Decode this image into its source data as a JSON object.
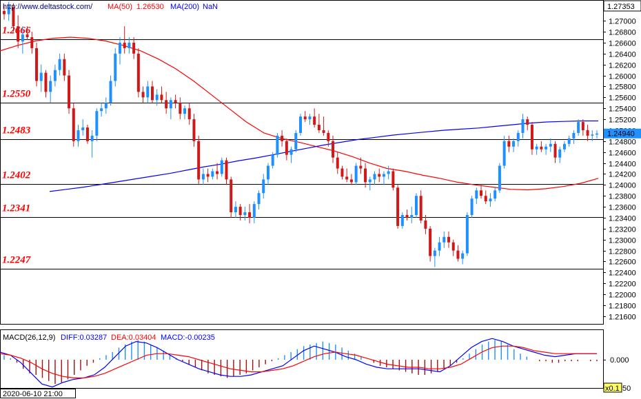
{
  "chart_data": [
    {
      "type": "candlestick",
      "source_label": "http://www.deltastock.com/",
      "indicators": [
        {
          "label": "MA(50)",
          "value": "1.26530",
          "color": "#ff0000"
        },
        {
          "label": "MA(200)",
          "value": "NaN",
          "color": "#0000ff"
        }
      ],
      "current_price": "1.24940",
      "top_label": "1.27353",
      "y_ticks": [
        "1.27000",
        "1.26800",
        "1.26600",
        "1.26400",
        "1.26200",
        "1.26000",
        "1.25800",
        "1.25600",
        "1.25400",
        "1.25200",
        "1.25000",
        "1.24800",
        "1.24600",
        "1.24400",
        "1.24200",
        "1.24000",
        "1.23800",
        "1.23600",
        "1.23400",
        "1.23200",
        "1.23000",
        "1.22800",
        "1.22600",
        "1.22400",
        "1.22200",
        "1.22000",
        "1.21800",
        "1.21600"
      ],
      "ylim": [
        1.2146,
        1.2738
      ],
      "levels": [
        {
          "label": "1.2666",
          "value": 1.2666
        },
        {
          "label": "1.2550",
          "value": 1.255
        },
        {
          "label": "1.2483",
          "value": 1.2483
        },
        {
          "label": "1.2402",
          "value": 1.2402
        },
        {
          "label": "1.2341",
          "value": 1.2341
        },
        {
          "label": "1.2247",
          "value": 1.2247
        }
      ],
      "ohlc": [
        [
          1.2718,
          1.2728,
          1.2702,
          1.2712
        ],
        [
          1.2712,
          1.2735,
          1.27,
          1.2725
        ],
        [
          1.2725,
          1.2732,
          1.268,
          1.269
        ],
        [
          1.269,
          1.271,
          1.265,
          1.2662
        ],
        [
          1.2662,
          1.269,
          1.264,
          1.2675
        ],
        [
          1.2675,
          1.269,
          1.2665,
          1.267
        ],
        [
          1.267,
          1.268,
          1.264,
          1.265
        ],
        [
          1.265,
          1.266,
          1.258,
          1.259
        ],
        [
          1.259,
          1.262,
          1.257,
          1.2605
        ],
        [
          1.2605,
          1.261,
          1.256,
          1.257
        ],
        [
          1.257,
          1.26,
          1.255,
          1.259
        ],
        [
          1.259,
          1.262,
          1.258,
          1.261
        ],
        [
          1.261,
          1.264,
          1.26,
          1.263
        ],
        [
          1.263,
          1.264,
          1.259,
          1.26
        ],
        [
          1.26,
          1.261,
          1.253,
          1.254
        ],
        [
          1.254,
          1.255,
          1.247,
          1.248
        ],
        [
          1.248,
          1.251,
          1.247,
          1.25
        ],
        [
          1.25,
          1.252,
          1.249,
          1.2505
        ],
        [
          1.2505,
          1.251,
          1.2475,
          1.248
        ],
        [
          1.248,
          1.25,
          1.245,
          1.249
        ],
        [
          1.249,
          1.254,
          1.248,
          1.2535
        ],
        [
          1.2535,
          1.255,
          1.2525,
          1.254
        ],
        [
          1.254,
          1.256,
          1.253,
          1.255
        ],
        [
          1.255,
          1.26,
          1.2545,
          1.259
        ],
        [
          1.259,
          1.265,
          1.258,
          1.264
        ],
        [
          1.264,
          1.267,
          1.262,
          1.266
        ],
        [
          1.266,
          1.269,
          1.264,
          1.265
        ],
        [
          1.265,
          1.267,
          1.264,
          1.266
        ],
        [
          1.266,
          1.267,
          1.263,
          1.264
        ],
        [
          1.264,
          1.265,
          1.256,
          1.257
        ],
        [
          1.257,
          1.258,
          1.255,
          1.256
        ],
        [
          1.256,
          1.259,
          1.255,
          1.258
        ],
        [
          1.258,
          1.259,
          1.255,
          1.2555
        ],
        [
          1.2555,
          1.2575,
          1.2545,
          1.2565
        ],
        [
          1.2565,
          1.258,
          1.255,
          1.2555
        ],
        [
          1.2555,
          1.257,
          1.253,
          1.254
        ],
        [
          1.254,
          1.256,
          1.252,
          1.2555
        ],
        [
          1.2555,
          1.2565,
          1.254,
          1.255
        ],
        [
          1.255,
          1.256,
          1.252,
          1.253
        ],
        [
          1.253,
          1.2545,
          1.252,
          1.254
        ],
        [
          1.254,
          1.255,
          1.251,
          1.252
        ],
        [
          1.252,
          1.253,
          1.247,
          1.248
        ],
        [
          1.248,
          1.249,
          1.24,
          1.241
        ],
        [
          1.241,
          1.243,
          1.24,
          1.242
        ],
        [
          1.242,
          1.243,
          1.2405,
          1.2415
        ],
        [
          1.2415,
          1.243,
          1.241,
          1.2425
        ],
        [
          1.2425,
          1.244,
          1.241,
          1.242
        ],
        [
          1.242,
          1.245,
          1.2415,
          1.2445
        ],
        [
          1.2445,
          1.245,
          1.24,
          1.241
        ],
        [
          1.241,
          1.2415,
          1.234,
          1.235
        ],
        [
          1.235,
          1.237,
          1.234,
          1.236
        ],
        [
          1.236,
          1.2365,
          1.2335,
          1.2345
        ],
        [
          1.2345,
          1.236,
          1.2335,
          1.235
        ],
        [
          1.235,
          1.2365,
          1.233,
          1.234
        ],
        [
          1.234,
          1.237,
          1.233,
          1.2365
        ],
        [
          1.2365,
          1.239,
          1.2355,
          1.2385
        ],
        [
          1.2385,
          1.242,
          1.2375,
          1.241
        ],
        [
          1.241,
          1.244,
          1.24,
          1.2435
        ],
        [
          1.2435,
          1.246,
          1.243,
          1.2455
        ],
        [
          1.2455,
          1.2495,
          1.245,
          1.249
        ],
        [
          1.249,
          1.25,
          1.247,
          1.248
        ],
        [
          1.248,
          1.2485,
          1.2445,
          1.2455
        ],
        [
          1.2455,
          1.247,
          1.244,
          1.2465
        ],
        [
          1.2465,
          1.25,
          1.246,
          1.2495
        ],
        [
          1.2495,
          1.253,
          1.249,
          1.2525
        ],
        [
          1.2525,
          1.2535,
          1.2515,
          1.252
        ],
        [
          1.252,
          1.253,
          1.251,
          1.2525
        ],
        [
          1.2525,
          1.254,
          1.2505,
          1.251
        ],
        [
          1.251,
          1.253,
          1.2495,
          1.25
        ],
        [
          1.25,
          1.2525,
          1.249,
          1.2495
        ],
        [
          1.2495,
          1.25,
          1.247,
          1.248
        ],
        [
          1.248,
          1.249,
          1.244,
          1.245
        ],
        [
          1.245,
          1.246,
          1.242,
          1.243
        ],
        [
          1.243,
          1.2435,
          1.241,
          1.2415
        ],
        [
          1.2415,
          1.243,
          1.2405,
          1.241
        ],
        [
          1.241,
          1.242,
          1.24,
          1.2405
        ],
        [
          1.2405,
          1.244,
          1.24,
          1.2435
        ],
        [
          1.2435,
          1.245,
          1.242,
          1.243
        ],
        [
          1.243,
          1.244,
          1.2395,
          1.2405
        ],
        [
          1.2405,
          1.2415,
          1.239,
          1.241
        ],
        [
          1.241,
          1.2425,
          1.24,
          1.242
        ],
        [
          1.242,
          1.243,
          1.2405,
          1.2415
        ],
        [
          1.2415,
          1.2425,
          1.24,
          1.242
        ],
        [
          1.242,
          1.2435,
          1.241,
          1.2425
        ],
        [
          1.2425,
          1.243,
          1.239,
          1.2395
        ],
        [
          1.2395,
          1.24,
          1.232,
          1.2325
        ],
        [
          1.2325,
          1.235,
          1.232,
          1.2345
        ],
        [
          1.2345,
          1.2355,
          1.2335,
          1.234
        ],
        [
          1.234,
          1.236,
          1.233,
          1.2345
        ],
        [
          1.2345,
          1.2385,
          1.234,
          1.238
        ],
        [
          1.238,
          1.239,
          1.233,
          1.2335
        ],
        [
          1.2335,
          1.2345,
          1.231,
          1.232
        ],
        [
          1.232,
          1.2325,
          1.226,
          1.227
        ],
        [
          1.227,
          1.2285,
          1.225,
          1.228
        ],
        [
          1.228,
          1.2305,
          1.227,
          1.2295
        ],
        [
          1.2295,
          1.2315,
          1.2285,
          1.2305
        ],
        [
          1.2305,
          1.2315,
          1.2285,
          1.2295
        ],
        [
          1.2295,
          1.23,
          1.227,
          1.228
        ],
        [
          1.228,
          1.229,
          1.226,
          1.2265
        ],
        [
          1.2265,
          1.228,
          1.2255,
          1.2275
        ],
        [
          1.2275,
          1.235,
          1.227,
          1.2345
        ],
        [
          1.2345,
          1.238,
          1.234,
          1.2375
        ],
        [
          1.2375,
          1.2395,
          1.2365,
          1.239
        ],
        [
          1.239,
          1.24,
          1.2375,
          1.238
        ],
        [
          1.238,
          1.239,
          1.2365,
          1.237
        ],
        [
          1.237,
          1.2385,
          1.236,
          1.2375
        ],
        [
          1.2375,
          1.2395,
          1.237,
          1.239
        ],
        [
          1.239,
          1.244,
          1.2385,
          1.2435
        ],
        [
          1.2435,
          1.249,
          1.243,
          1.248
        ],
        [
          1.248,
          1.249,
          1.246,
          1.247
        ],
        [
          1.247,
          1.2485,
          1.246,
          1.248
        ],
        [
          1.248,
          1.25,
          1.247,
          1.2495
        ],
        [
          1.2495,
          1.253,
          1.2485,
          1.252
        ],
        [
          1.252,
          1.2525,
          1.25,
          1.251
        ],
        [
          1.251,
          1.2515,
          1.2455,
          1.2465
        ],
        [
          1.2465,
          1.2475,
          1.2455,
          1.247
        ],
        [
          1.247,
          1.248,
          1.246,
          1.2465
        ],
        [
          1.2465,
          1.2475,
          1.2455,
          1.247
        ],
        [
          1.247,
          1.2485,
          1.246,
          1.2475
        ],
        [
          1.2475,
          1.248,
          1.244,
          1.245
        ],
        [
          1.245,
          1.247,
          1.244,
          1.2465
        ],
        [
          1.2465,
          1.248,
          1.246,
          1.2475
        ],
        [
          1.2475,
          1.249,
          1.247,
          1.2485
        ],
        [
          1.2485,
          1.25,
          1.2475,
          1.2495
        ],
        [
          1.2495,
          1.252,
          1.249,
          1.2515
        ],
        [
          1.2515,
          1.252,
          1.249,
          1.25
        ],
        [
          1.25,
          1.251,
          1.248,
          1.249
        ],
        [
          1.249,
          1.25,
          1.248,
          1.2492
        ],
        [
          1.2492,
          1.25,
          1.2485,
          1.2494
        ]
      ],
      "ma50": [
        1.2645,
        1.2655,
        1.2663,
        1.2668,
        1.267,
        1.2668,
        1.2663,
        1.2655,
        1.2645,
        1.263,
        1.2612,
        1.259,
        1.2565,
        1.254,
        1.2515,
        1.2495,
        1.2485,
        1.2478,
        1.247,
        1.2462,
        1.2452,
        1.244,
        1.243,
        1.2425,
        1.2418,
        1.2412,
        1.2405,
        1.24,
        1.2396,
        1.2392,
        1.2391,
        1.2393,
        1.2397,
        1.2403,
        1.2412
      ],
      "ma200": [
        1.2388,
        1.2392,
        1.2396,
        1.2401,
        1.2406,
        1.2411,
        1.2416,
        1.2421,
        1.2427,
        1.2433,
        1.2438,
        1.2444,
        1.2449,
        1.2455,
        1.2461,
        1.2467,
        1.2473,
        1.2478,
        1.2483,
        1.2487,
        1.2491,
        1.2494,
        1.2497,
        1.25,
        1.2502,
        1.2504,
        1.2507,
        1.251,
        1.2513,
        1.2515,
        1.2516,
        1.2517,
        1.2517
      ]
    },
    {
      "type": "macd",
      "title": "MACD(26,12,9)",
      "diff_label": "DIFF:0.03287",
      "dea_label": "DEA:0.03404",
      "macd_label": "MACD:-0.00235",
      "y_tick": "0.000",
      "scale_label": "x0.1",
      "scale_value": "50",
      "histogram": [
        0.3,
        0.1,
        -0.2,
        -0.6,
        -0.9,
        -1.0,
        -1.2,
        -1.4,
        -1.6,
        -1.5,
        -1.3,
        -1.0,
        -0.7,
        -0.4,
        -0.2,
        0.1,
        0.3,
        0.5,
        0.8,
        1.0,
        1.2,
        1.3,
        1.2,
        1.0,
        0.8,
        0.6,
        0.3,
        0.1,
        -0.1,
        -0.3,
        -0.5,
        -0.7,
        -0.9,
        -1.0,
        -1.1,
        -1.2,
        -1.1,
        -1.0,
        -0.9,
        -0.7,
        -0.5,
        -0.3,
        -0.1,
        0.1,
        0.3,
        0.5,
        0.7,
        0.9,
        1.0,
        1.1,
        1.2,
        1.1,
        1.0,
        0.8,
        0.6,
        0.4,
        0.2,
        0.0,
        -0.2,
        -0.4,
        -0.5,
        -0.6,
        -0.7,
        -0.8,
        -0.9,
        -1.0,
        -1.0,
        -0.9,
        -0.8,
        -0.6,
        -0.4,
        -0.2,
        0.1,
        0.4,
        0.7,
        1.0,
        1.2,
        1.3,
        1.2,
        1.0,
        0.7,
        0.4,
        0.2,
        0.0,
        -0.1,
        -0.1,
        -0.2,
        -0.2,
        -0.1,
        -0.1,
        -0.1,
        0.0,
        -0.1,
        -0.1
      ],
      "diff": [
        0.5,
        0.3,
        -0.2,
        -0.9,
        -1.6,
        -1.8,
        -1.5,
        -1.3,
        -1.2,
        -1.0,
        -0.5,
        0.2,
        0.9,
        1.2,
        1.1,
        0.8,
        0.4,
        0.0,
        -0.3,
        -0.6,
        -0.8,
        -1.0,
        -1.1,
        -1.1,
        -1.0,
        -0.8,
        -0.6,
        -0.4,
        0.1,
        0.6,
        0.9,
        0.7,
        0.5,
        0.2,
        0.0,
        -0.3,
        -0.5,
        -0.6,
        -0.6,
        -0.6,
        -0.6,
        -0.7,
        -0.8,
        -0.4,
        0.2,
        0.8,
        1.2,
        1.4,
        1.2,
        0.9,
        0.7,
        0.5,
        0.3,
        0.2,
        0.3,
        0.4,
        0.4,
        0.4
      ],
      "dea": [
        0.4,
        0.3,
        0.1,
        -0.2,
        -0.6,
        -0.9,
        -1.1,
        -1.2,
        -1.2,
        -1.1,
        -0.9,
        -0.6,
        -0.3,
        0.0,
        0.3,
        0.4,
        0.4,
        0.3,
        0.2,
        0.0,
        -0.2,
        -0.4,
        -0.6,
        -0.7,
        -0.8,
        -0.8,
        -0.7,
        -0.6,
        -0.4,
        -0.1,
        0.2,
        0.4,
        0.5,
        0.4,
        0.3,
        0.1,
        -0.1,
        -0.3,
        -0.4,
        -0.5,
        -0.5,
        -0.6,
        -0.6,
        -0.5,
        -0.3,
        0.1,
        0.5,
        0.8,
        0.9,
        0.9,
        0.8,
        0.6,
        0.5,
        0.4,
        0.4,
        0.4,
        0.4,
        0.4
      ]
    }
  ],
  "status_bar": {
    "datetime": "2020-06-10 21:00"
  }
}
